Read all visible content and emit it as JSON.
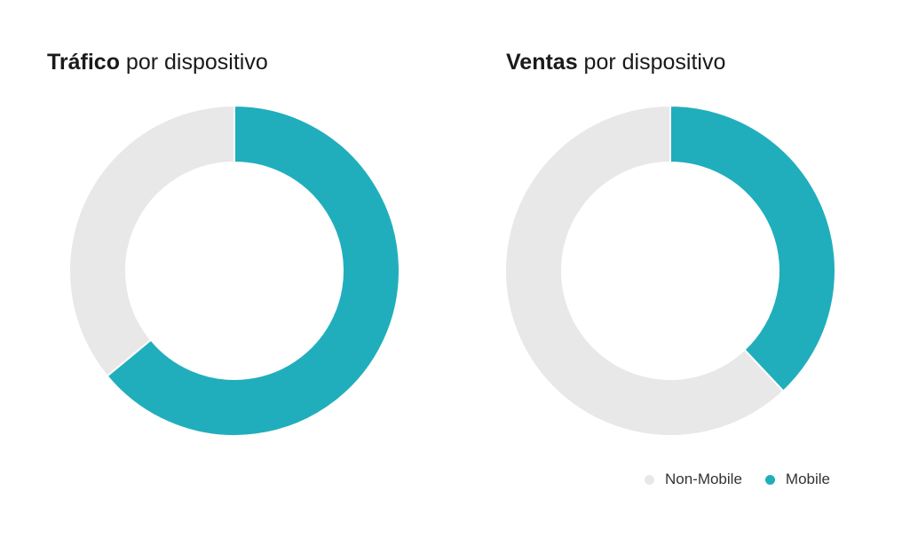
{
  "chart_data": [
    {
      "type": "pie",
      "title_bold": "Tráfico",
      "title_rest": " por dispositivo",
      "series": [
        {
          "name": "Non-Mobile",
          "value": 36
        },
        {
          "name": "Mobile",
          "value": 64
        }
      ]
    },
    {
      "type": "pie",
      "title_bold": "Ventas",
      "title_rest": " por dispositivo",
      "series": [
        {
          "name": "Non-Mobile",
          "value": 62
        },
        {
          "name": "Mobile",
          "value": 38
        }
      ]
    }
  ],
  "legend": {
    "placement": "bottom-right",
    "items": [
      {
        "label": "Non-Mobile",
        "color": "#e8e8e8"
      },
      {
        "label": "Mobile",
        "color": "#21aebc"
      }
    ]
  },
  "colors": {
    "Non-Mobile": "#e8e8e8",
    "Mobile": "#21aebc"
  }
}
